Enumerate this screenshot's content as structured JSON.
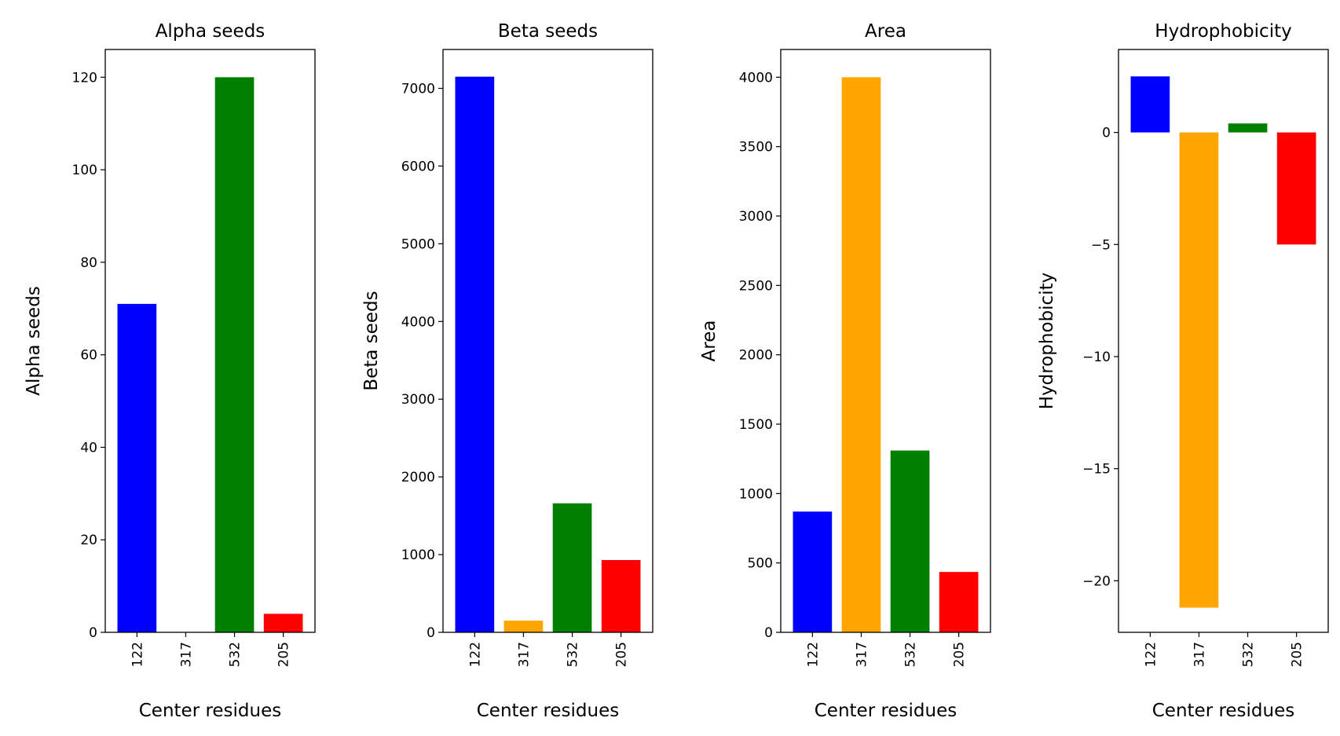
{
  "chart_data": [
    {
      "type": "bar",
      "title": "Alpha seeds",
      "xlabel": "Center residues",
      "ylabel": "Alpha seeds",
      "categories": [
        "122",
        "317",
        "532",
        "205"
      ],
      "values": [
        71,
        0,
        120,
        4
      ],
      "colors": [
        "#0000ff",
        "#ffa500",
        "#008000",
        "#ff0000"
      ],
      "ylim": [
        0,
        126
      ],
      "yticks": [
        0,
        20,
        40,
        60,
        80,
        100,
        120
      ],
      "ytick_labels": [
        "0",
        "20",
        "40",
        "60",
        "80",
        "100",
        "120"
      ],
      "grid": false
    },
    {
      "type": "bar",
      "title": "Beta seeds",
      "xlabel": "Center residues",
      "ylabel": "Beta seeds",
      "categories": [
        "122",
        "317",
        "532",
        "205"
      ],
      "values": [
        7150,
        150,
        1660,
        930
      ],
      "colors": [
        "#0000ff",
        "#ffa500",
        "#008000",
        "#ff0000"
      ],
      "ylim": [
        0,
        7500
      ],
      "yticks": [
        0,
        1000,
        2000,
        3000,
        4000,
        5000,
        6000,
        7000
      ],
      "ytick_labels": [
        "0",
        "1000",
        "2000",
        "3000",
        "4000",
        "5000",
        "6000",
        "7000"
      ],
      "grid": false
    },
    {
      "type": "bar",
      "title": "Area",
      "xlabel": "Center residues",
      "ylabel": "Area",
      "categories": [
        "122",
        "317",
        "532",
        "205"
      ],
      "values": [
        870,
        4000,
        1310,
        435
      ],
      "colors": [
        "#0000ff",
        "#ffa500",
        "#008000",
        "#ff0000"
      ],
      "ylim": [
        0,
        4200
      ],
      "yticks": [
        0,
        500,
        1000,
        1500,
        2000,
        2500,
        3000,
        3500,
        4000
      ],
      "ytick_labels": [
        "0",
        "500",
        "1000",
        "1500",
        "2000",
        "2500",
        "3000",
        "3500",
        "4000"
      ],
      "grid": false
    },
    {
      "type": "bar",
      "title": "Hydrophobicity",
      "xlabel": "Center residues",
      "ylabel": "Hydrophobicity",
      "categories": [
        "122",
        "317",
        "532",
        "205"
      ],
      "values": [
        2.5,
        -21.2,
        0.4,
        -5.0
      ],
      "colors": [
        "#0000ff",
        "#ffa500",
        "#008000",
        "#ff0000"
      ],
      "ylim": [
        -22.3,
        3.7
      ],
      "yticks": [
        0,
        -5,
        -10,
        -15,
        -20
      ],
      "ytick_labels": [
        "0",
        "−5",
        "−10",
        "−15",
        "−20"
      ],
      "grid": false
    }
  ]
}
